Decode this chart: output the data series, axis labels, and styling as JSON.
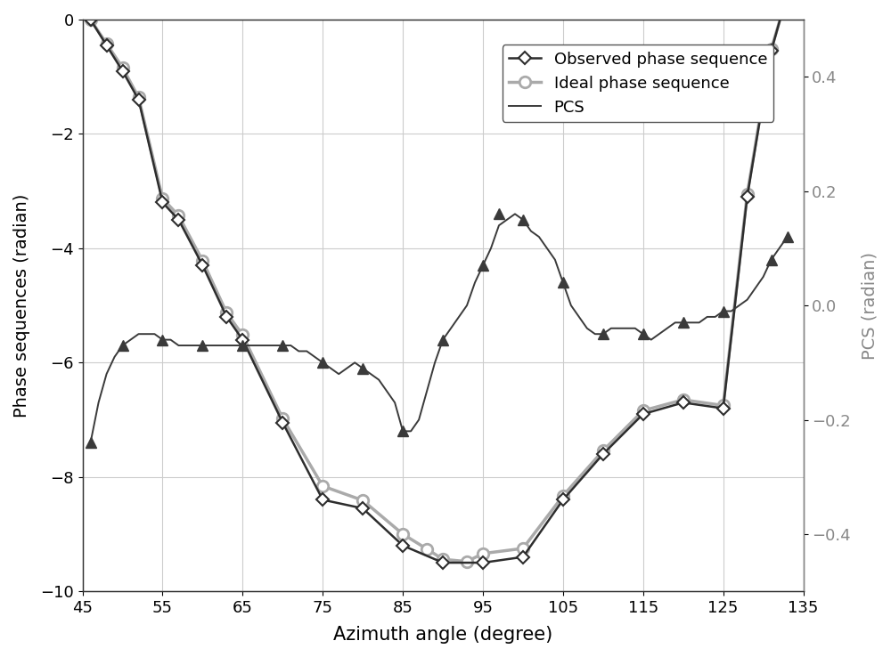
{
  "xlabel": "Azimuth angle (degree)",
  "ylabel_left": "Phase sequences (radian)",
  "ylabel_right": "PCS (radian)",
  "xlim": [
    45,
    135
  ],
  "ylim_left": [
    -10,
    0
  ],
  "ylim_right": [
    -0.5,
    0.5
  ],
  "xticks": [
    45,
    55,
    65,
    75,
    85,
    95,
    105,
    115,
    125,
    135
  ],
  "yticks_left": [
    0,
    -2,
    -4,
    -6,
    -8,
    -10
  ],
  "yticks_right": [
    0.4,
    0.2,
    0.0,
    -0.2,
    -0.4
  ],
  "observed_x": [
    46,
    48,
    50,
    52,
    55,
    57,
    60,
    63,
    65,
    70,
    75,
    80,
    85,
    90,
    95,
    100,
    105,
    110,
    115,
    120,
    125,
    128,
    131,
    133
  ],
  "observed_y": [
    0.0,
    -0.45,
    -0.9,
    -1.4,
    -3.2,
    -3.5,
    -4.3,
    -5.2,
    -5.6,
    -7.05,
    -8.4,
    -8.55,
    -9.2,
    -9.5,
    -9.5,
    -9.4,
    -8.4,
    -7.6,
    -6.9,
    -6.7,
    -6.8,
    -3.1,
    -0.55,
    0.45
  ],
  "ideal_x": [
    46,
    48,
    50,
    52,
    55,
    57,
    60,
    63,
    65,
    70,
    75,
    80,
    85,
    88,
    90,
    93,
    95,
    100,
    105,
    110,
    115,
    120,
    125,
    128,
    131,
    133
  ],
  "ideal_y": [
    0.0,
    -0.42,
    -0.84,
    -1.36,
    -3.13,
    -3.43,
    -4.22,
    -5.13,
    -5.52,
    -6.98,
    -8.16,
    -8.41,
    -9.0,
    -9.26,
    -9.44,
    -9.48,
    -9.34,
    -9.25,
    -8.33,
    -7.54,
    -6.84,
    -6.65,
    -6.75,
    -3.05,
    -0.52,
    0.43
  ],
  "pcs_dense_x": [
    46,
    47,
    48,
    49,
    50,
    51,
    52,
    53,
    54,
    55,
    56,
    57,
    58,
    59,
    60,
    61,
    62,
    63,
    64,
    65,
    66,
    67,
    68,
    69,
    70,
    71,
    72,
    73,
    74,
    75,
    76,
    77,
    78,
    79,
    80,
    81,
    82,
    83,
    84,
    85,
    86,
    87,
    88,
    89,
    90,
    91,
    92,
    93,
    94,
    95,
    96,
    97,
    98,
    99,
    100,
    101,
    102,
    103,
    104,
    105,
    106,
    107,
    108,
    109,
    110,
    111,
    112,
    113,
    114,
    115,
    116,
    117,
    118,
    119,
    120,
    121,
    122,
    123,
    124,
    125,
    126,
    127,
    128,
    129,
    130,
    131,
    132,
    133
  ],
  "pcs_dense_y": [
    -0.24,
    -0.17,
    -0.12,
    -0.09,
    -0.07,
    -0.06,
    -0.05,
    -0.05,
    -0.05,
    -0.06,
    -0.06,
    -0.07,
    -0.07,
    -0.07,
    -0.07,
    -0.07,
    -0.07,
    -0.07,
    -0.07,
    -0.07,
    -0.07,
    -0.07,
    -0.07,
    -0.07,
    -0.07,
    -0.07,
    -0.08,
    -0.08,
    -0.09,
    -0.1,
    -0.11,
    -0.12,
    -0.11,
    -0.1,
    -0.11,
    -0.12,
    -0.13,
    -0.15,
    -0.17,
    -0.22,
    -0.22,
    -0.2,
    -0.15,
    -0.1,
    -0.06,
    -0.04,
    -0.02,
    0.0,
    0.04,
    0.07,
    0.1,
    0.14,
    0.15,
    0.16,
    0.15,
    0.13,
    0.12,
    0.1,
    0.08,
    0.04,
    0.0,
    -0.02,
    -0.04,
    -0.05,
    -0.05,
    -0.04,
    -0.04,
    -0.04,
    -0.04,
    -0.05,
    -0.06,
    -0.05,
    -0.04,
    -0.03,
    -0.03,
    -0.03,
    -0.03,
    -0.02,
    -0.02,
    -0.01,
    -0.01,
    0.0,
    0.01,
    0.03,
    0.05,
    0.08,
    0.1,
    0.12
  ],
  "pcs_marker_x": [
    46,
    50,
    55,
    60,
    65,
    70,
    75,
    80,
    85,
    90,
    95,
    97,
    100,
    105,
    110,
    115,
    120,
    125,
    131,
    133
  ],
  "pcs_marker_y": [
    -0.24,
    -0.07,
    -0.06,
    -0.07,
    -0.07,
    -0.07,
    -0.1,
    -0.11,
    -0.22,
    -0.06,
    0.07,
    0.16,
    0.15,
    0.04,
    -0.05,
    -0.05,
    -0.03,
    -0.01,
    0.08,
    0.12
  ],
  "observed_color": "#2d2d2d",
  "ideal_color": "#aaaaaa",
  "pcs_color": "#3a3a3a",
  "background_color": "#ffffff",
  "grid_color": "#cccccc"
}
